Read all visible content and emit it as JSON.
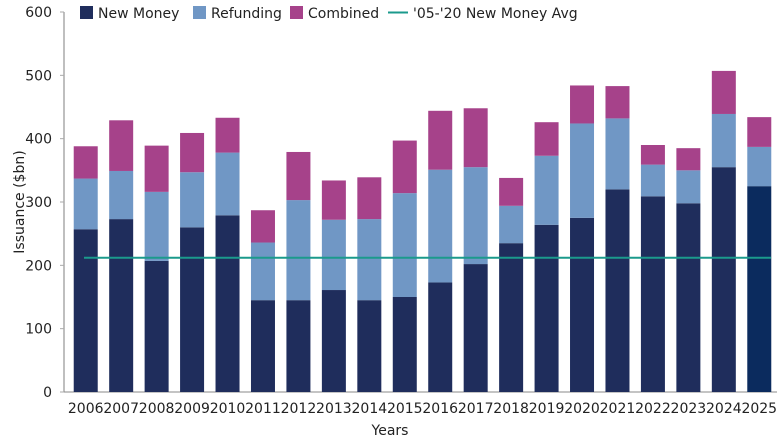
{
  "chart_data": {
    "type": "bar",
    "stacked": true,
    "title": "",
    "xlabel": "Years",
    "ylabel": "Issuance ($bn)",
    "ylim": [
      0,
      600
    ],
    "yticks": [
      0,
      100,
      200,
      300,
      400,
      500,
      600
    ],
    "grid": false,
    "legend_position": "top",
    "categories": [
      "2006",
      "2007",
      "2008",
      "2009",
      "2010",
      "2011",
      "2012",
      "2013",
      "2014",
      "2015",
      "2016",
      "2017",
      "2018",
      "2019",
      "2020",
      "2021",
      "2022",
      "2023",
      "2024",
      "2025"
    ],
    "series": [
      {
        "name": "New Money",
        "color": "#1f2d5c",
        "values": [
          257,
          273,
          207,
          260,
          279,
          145,
          145,
          161,
          145,
          150,
          173,
          202,
          235,
          264,
          275,
          320,
          309,
          298,
          355,
          325
        ]
      },
      {
        "name": "Refunding",
        "color": "#7097c5",
        "values": [
          80,
          76,
          109,
          87,
          99,
          91,
          158,
          111,
          128,
          164,
          178,
          153,
          59,
          109,
          149,
          112,
          50,
          52,
          84,
          62
        ]
      },
      {
        "name": "Combined",
        "color": "#a6428a",
        "values": [
          51,
          80,
          73,
          62,
          55,
          51,
          76,
          62,
          66,
          83,
          93,
          93,
          44,
          53,
          60,
          51,
          31,
          35,
          68,
          47
        ]
      }
    ],
    "highlight": {
      "category": "2025",
      "new_money_color": "#0b2b5e"
    },
    "reference_line": {
      "name": "'05-'20 New Money Avg",
      "value": 212,
      "color": "#1b9a8c"
    }
  }
}
